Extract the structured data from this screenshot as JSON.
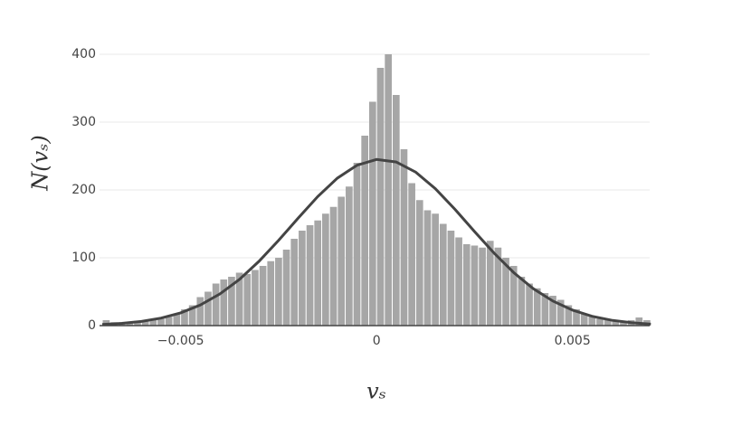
{
  "chart_data": {
    "type": "histogram",
    "x_label": "vₛ",
    "y_label": "N(vₛ)",
    "bins": [
      -0.007,
      -0.0068,
      -0.0066,
      -0.0064,
      -0.0062,
      -0.006,
      -0.0058,
      -0.0056,
      -0.0054,
      -0.0052,
      -0.005,
      -0.0048,
      -0.0046,
      -0.0044,
      -0.0042,
      -0.004,
      -0.0038,
      -0.0036,
      -0.0034,
      -0.0032,
      -0.003,
      -0.0028,
      -0.0026,
      -0.0024,
      -0.0022,
      -0.002,
      -0.0018,
      -0.0016,
      -0.0014,
      -0.0012,
      -0.001,
      -0.0008,
      -0.0006,
      -0.0004,
      -0.0002,
      0,
      0.0002,
      0.0004,
      0.0006,
      0.0008,
      0.001,
      0.0012,
      0.0014,
      0.0016,
      0.0018,
      0.002,
      0.0022,
      0.0024,
      0.0026,
      0.0028,
      0.003,
      0.0032,
      0.0034,
      0.0036,
      0.0038,
      0.004,
      0.0042,
      0.0044,
      0.0046,
      0.0048,
      0.005,
      0.0052,
      0.0054,
      0.0056,
      0.0058,
      0.006,
      0.0062,
      0.0064,
      0.0066,
      0.0068,
      0.007
    ],
    "counts": [
      8,
      5,
      4,
      6,
      7,
      8,
      9,
      10,
      13,
      18,
      24,
      30,
      42,
      50,
      62,
      68,
      72,
      78,
      76,
      82,
      88,
      95,
      100,
      112,
      128,
      140,
      148,
      155,
      165,
      175,
      190,
      205,
      240,
      280,
      330,
      380,
      400,
      340,
      260,
      210,
      185,
      170,
      165,
      150,
      140,
      130,
      120,
      118,
      115,
      125,
      115,
      100,
      88,
      72,
      62,
      55,
      48,
      44,
      38,
      30,
      24,
      18,
      14,
      10,
      8,
      6,
      5,
      8,
      12,
      8
    ],
    "color": "#a6a6a6",
    "curve": {
      "x": [
        -0.007,
        -0.0065,
        -0.006,
        -0.0055,
        -0.005,
        -0.0045,
        -0.004,
        -0.0035,
        -0.003,
        -0.0025,
        -0.002,
        -0.0015,
        -0.001,
        -0.0005,
        0,
        0.0005,
        0.001,
        0.0015,
        0.002,
        0.0025,
        0.003,
        0.0035,
        0.004,
        0.0045,
        0.005,
        0.0055,
        0.006,
        0.0065,
        0.007
      ],
      "values": [
        1.7,
        3.3,
        6.2,
        11.1,
        18.8,
        30.3,
        46.6,
        68.1,
        94.8,
        125.6,
        158.5,
        190.3,
        217.4,
        236.4,
        245,
        241.2,
        226.2,
        201.9,
        171.5,
        138.7,
        106.8,
        78.2,
        54.5,
        36.2,
        22.9,
        13.7,
        7.9,
        4.3,
        2.2
      ],
      "color": "#444444"
    },
    "xlim": [
      -0.00707,
      0.00697
    ],
    "ylim": [
      0,
      460
    ],
    "xticks": [
      {
        "value": -0.005,
        "label": "−0.005"
      },
      0,
      0.005
    ],
    "yticks": [
      0,
      100,
      200,
      300,
      400
    ],
    "grid": true
  }
}
